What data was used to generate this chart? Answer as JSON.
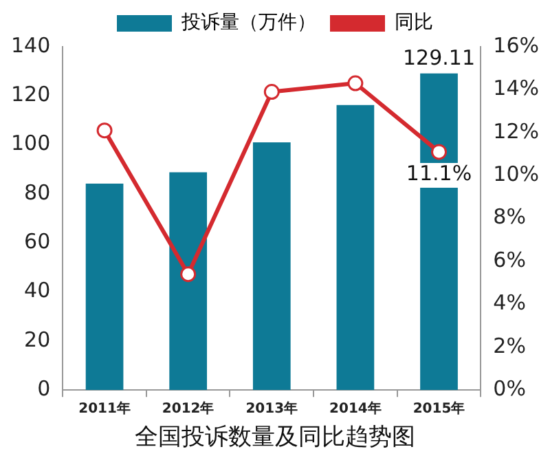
{
  "chart_data": {
    "type": "bar",
    "title": "全国投诉数量及同比趋势图",
    "categories": [
      "2011年",
      "2012年",
      "2013年",
      "2014年",
      "2015年"
    ],
    "series": [
      {
        "name": "投诉量（万件）",
        "color": "#0e7a96",
        "values": [
          84.2,
          88.8,
          101,
          116.2,
          129.11
        ],
        "value_labels": [
          null,
          null,
          null,
          null,
          "129.11"
        ]
      },
      {
        "name": "同比",
        "type": "line",
        "axis": "y2",
        "color": "#d42a2f",
        "values": [
          12.1,
          5.4,
          13.9,
          14.3,
          11.1
        ],
        "value_labels": [
          null,
          null,
          null,
          null,
          "11.1%"
        ]
      }
    ],
    "ylim": [
      0,
      140
    ],
    "yticks": [
      0,
      20,
      40,
      60,
      80,
      100,
      120,
      140
    ],
    "y2lim": [
      0,
      16
    ],
    "y2ticks": [
      {
        "value": 0,
        "label": "0%"
      },
      {
        "value": 2,
        "label": "2%"
      },
      {
        "value": 4,
        "label": "4%"
      },
      {
        "value": 6,
        "label": "6%"
      },
      {
        "value": 8,
        "label": "8%"
      },
      {
        "value": 10,
        "label": "10%"
      },
      {
        "value": 12,
        "label": "12%"
      },
      {
        "value": 14,
        "label": "14%"
      },
      {
        "value": 16,
        "label": "16%"
      }
    ],
    "grid": false,
    "legend": "top",
    "marker": "circle"
  }
}
